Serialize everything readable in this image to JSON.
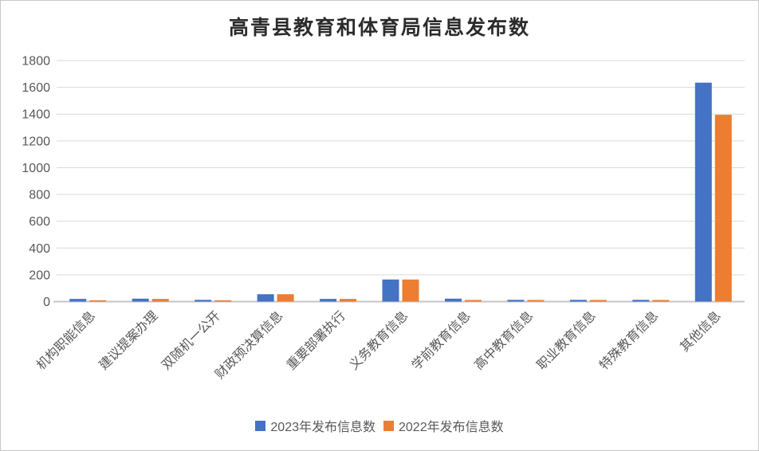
{
  "title": "高青县教育和体育局信息发布数",
  "colors": {
    "series_2023": "#4472C4",
    "series_2022": "#ED7D31",
    "gridline": "#D9D9D9",
    "baseline": "#C6C6C6",
    "axis_text": "#595959",
    "title_text": "#2B2B2B"
  },
  "chart_data": {
    "type": "bar",
    "title": "高青县教育和体育局信息发布数",
    "xlabel": "",
    "ylabel": "",
    "ylim": [
      0,
      1800
    ],
    "yticks": [
      0,
      200,
      400,
      600,
      800,
      1000,
      1200,
      1400,
      1600,
      1800
    ],
    "grid": true,
    "legend_position": "bottom",
    "categories": [
      "机构职能信息",
      "建议提案办理",
      "双随机一公开",
      "财政预决算信息",
      "重要部署执行",
      "义务教育信息",
      "学前教育信息",
      "高中教育信息",
      "职业教育信息",
      "特殊教育信息",
      "其他信息"
    ],
    "series": [
      {
        "name": "2023年发布信息数",
        "color": "#4472C4",
        "values": [
          20,
          22,
          13,
          55,
          20,
          165,
          22,
          13,
          13,
          13,
          1635
        ]
      },
      {
        "name": "2022年发布信息数",
        "color": "#ED7D31",
        "values": [
          10,
          20,
          10,
          55,
          20,
          165,
          12,
          12,
          12,
          12,
          1395
        ]
      }
    ]
  }
}
